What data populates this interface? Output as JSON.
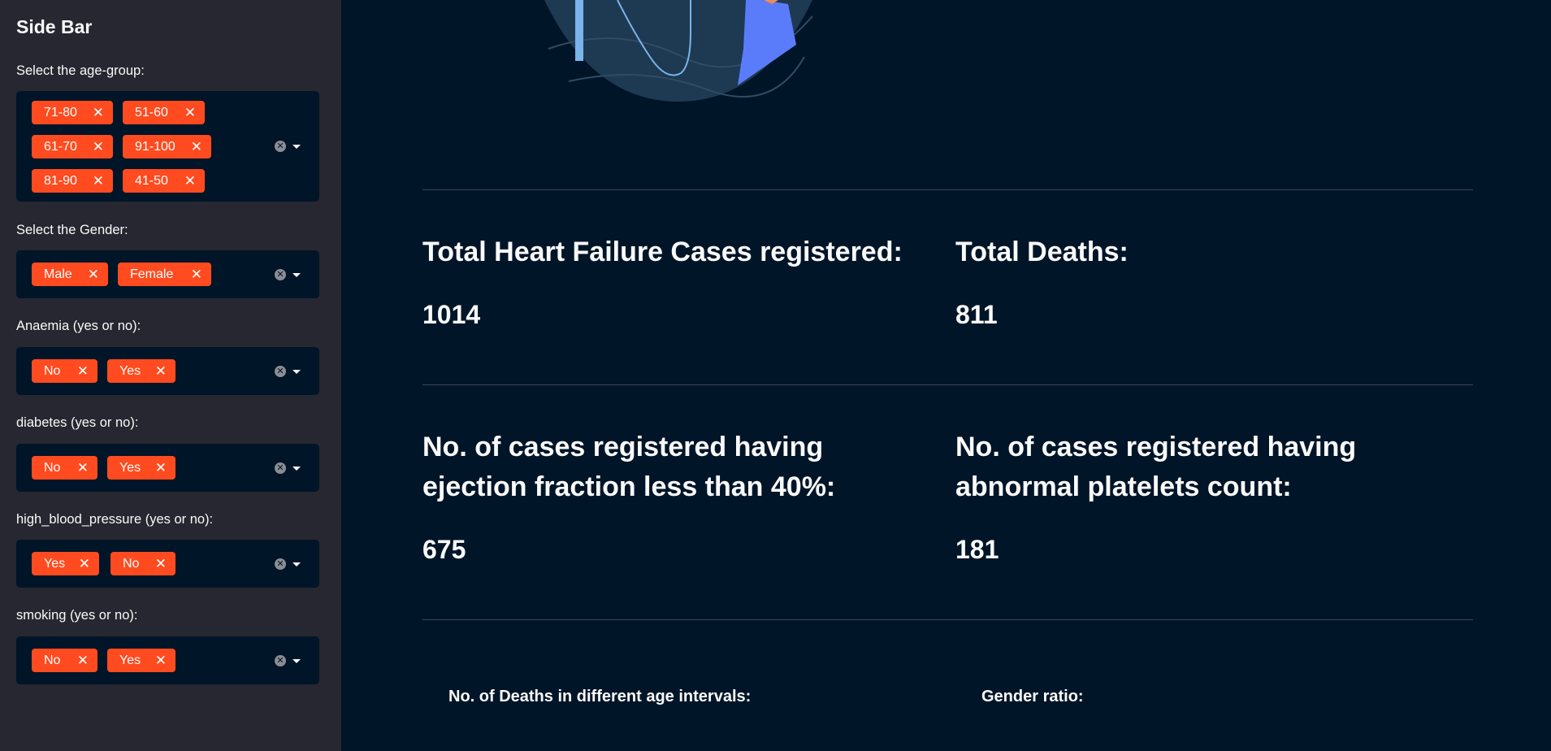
{
  "sidebar": {
    "title": "Side Bar",
    "filters": [
      {
        "label": "Select the age-group:",
        "chips": [
          "71-80",
          "51-60",
          "61-70",
          "91-100",
          "81-90",
          "41-50"
        ]
      },
      {
        "label": "Select the Gender:",
        "chips": [
          "Male",
          "Female"
        ]
      },
      {
        "label": "Anaemia (yes or no):",
        "chips": [
          "No",
          "Yes"
        ]
      },
      {
        "label": "diabetes (yes or no):",
        "chips": [
          "No",
          "Yes"
        ]
      },
      {
        "label": "high_blood_pressure (yes or no):",
        "chips": [
          "Yes",
          "No"
        ]
      },
      {
        "label": "smoking (yes or no):",
        "chips": [
          "No",
          "Yes"
        ]
      }
    ]
  },
  "main": {
    "metrics": [
      {
        "label": "Total Heart Failure Cases registered:",
        "value": "1014"
      },
      {
        "label": "Total Deaths:",
        "value": "811"
      },
      {
        "label": "No. of cases registered having ejection fraction less than 40%:",
        "value": "675"
      },
      {
        "label": "No. of cases registered having abnormal platelets count:",
        "value": "181"
      }
    ],
    "subheaders": [
      "No. of Deaths in different age intervals:",
      "Gender ratio:"
    ]
  },
  "colors": {
    "sidebar_bg": "#262730",
    "main_bg": "#011528",
    "chip": "#ff4b1f",
    "chart_bg": "#1e3a52",
    "chart_series_1": "#5b7cfa",
    "chart_series_2": "#7ab4ea",
    "chart_series_3": "#ef8a5c"
  }
}
